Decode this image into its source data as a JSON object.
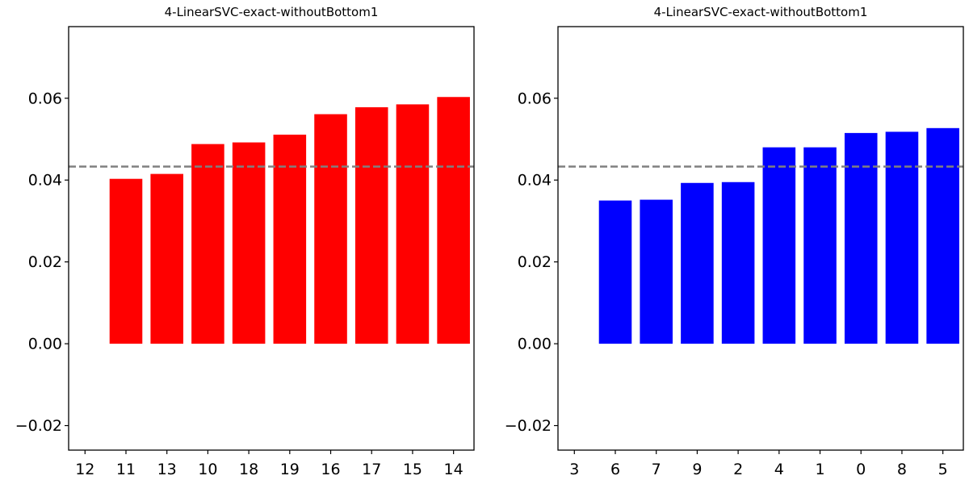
{
  "chart_data": [
    {
      "type": "bar",
      "title": "4-LinearSVC-exact-withoutBottom1",
      "xlabel": "",
      "ylabel": "",
      "categories": [
        "12",
        "11",
        "13",
        "10",
        "18",
        "19",
        "16",
        "17",
        "15",
        "14"
      ],
      "values": [
        0,
        0.0403,
        0.0415,
        0.0488,
        0.0492,
        0.0511,
        0.0561,
        0.0578,
        0.0585,
        0.0603
      ],
      "bar_color": "#ff0000",
      "reference_line": {
        "y": 0.0433,
        "color": "#808080",
        "style": "dashed"
      },
      "ylim": [
        -0.026,
        0.0775
      ],
      "yticks": [
        "−0.02",
        "0.00",
        "0.02",
        "0.04",
        "0.06"
      ],
      "ytick_values": [
        -0.02,
        0.0,
        0.02,
        0.04,
        0.06
      ],
      "grid": false,
      "legend": "none"
    },
    {
      "type": "bar",
      "title": "4-LinearSVC-exact-withoutBottom1",
      "xlabel": "",
      "ylabel": "",
      "categories": [
        "3",
        "6",
        "7",
        "9",
        "2",
        "4",
        "1",
        "0",
        "8",
        "5"
      ],
      "values": [
        0,
        0.035,
        0.0352,
        0.0393,
        0.0395,
        0.048,
        0.048,
        0.0515,
        0.0518,
        0.0527
      ],
      "bar_color": "#0000ff",
      "reference_line": {
        "y": 0.0433,
        "color": "#808080",
        "style": "dashed"
      },
      "ylim": [
        -0.026,
        0.0775
      ],
      "yticks": [
        "−0.02",
        "0.00",
        "0.02",
        "0.04",
        "0.06"
      ],
      "ytick_values": [
        -0.02,
        0.0,
        0.02,
        0.04,
        0.06
      ],
      "grid": false,
      "legend": "none"
    }
  ]
}
